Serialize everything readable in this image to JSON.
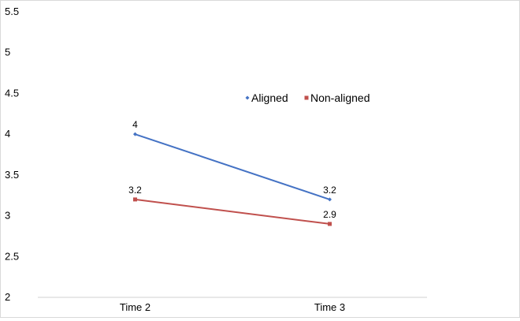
{
  "chart_data": {
    "type": "line",
    "categories": [
      "Time 2",
      "Time 3"
    ],
    "series": [
      {
        "name": "Aligned",
        "values": [
          4,
          3.2
        ],
        "color": "#4472C4",
        "labels": [
          "4",
          "3.2"
        ]
      },
      {
        "name": "Non-aligned",
        "values": [
          3.2,
          2.9
        ],
        "color": "#C0504D",
        "labels": [
          "3.2",
          "2.9"
        ]
      }
    ],
    "yticks": [
      "2",
      "2.5",
      "3",
      "3.5",
      "4",
      "4.5",
      "5",
      "5.5"
    ],
    "ylim": [
      2,
      5.5
    ],
    "grid": false,
    "legend_position": "top-right"
  }
}
